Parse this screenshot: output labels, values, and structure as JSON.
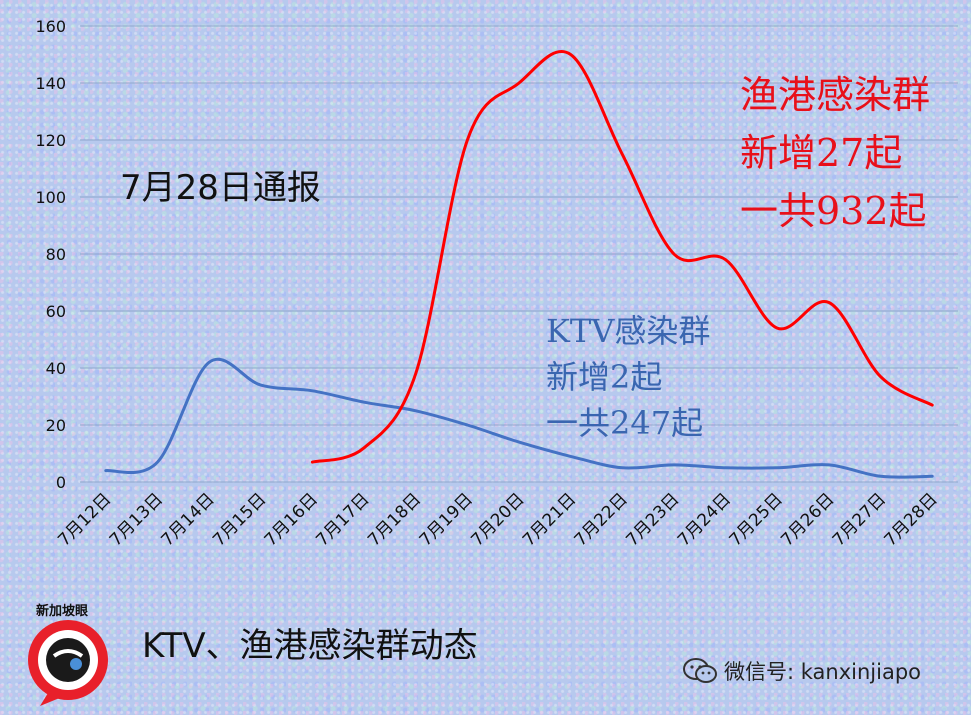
{
  "chart_data": {
    "type": "line",
    "categories": [
      "7月12日",
      "7月13日",
      "7月14日",
      "7月15日",
      "7月16日",
      "7月17日",
      "7月18日",
      "7月19日",
      "7月20日",
      "7月21日",
      "7月22日",
      "7月23日",
      "7月24日",
      "7月25日",
      "7月26日",
      "7月27日",
      "7月28日"
    ],
    "series": [
      {
        "key": "ktv",
        "values": [
          4,
          7,
          42,
          34,
          32,
          28,
          25,
          20,
          14,
          9,
          5,
          6,
          5,
          5,
          6,
          2,
          2
        ],
        "color": "#4472c4"
      },
      {
        "key": "fishery",
        "values": [
          null,
          null,
          null,
          null,
          7,
          12,
          38,
          120,
          140,
          150,
          115,
          80,
          78,
          54,
          63,
          37,
          27
        ],
        "color": "#ff0000"
      }
    ],
    "ylim": [
      0,
      160
    ],
    "yticks": [
      0,
      20,
      40,
      60,
      80,
      100,
      120,
      140,
      160
    ],
    "grid": true,
    "legend": "none"
  },
  "annotations": {
    "report": "7月28日通报",
    "fishery": "渔港感染群\n新增27起\n一共932起",
    "ktv": "KTV感染群\n新增2起\n一共247起"
  },
  "caption": "KTV、渔港感染群动态",
  "logo_text": "新加坡眼",
  "watermark": "微信号: kanxinjiapo",
  "icons": [
    "wechat-icon",
    "logo-eye-icon"
  ]
}
